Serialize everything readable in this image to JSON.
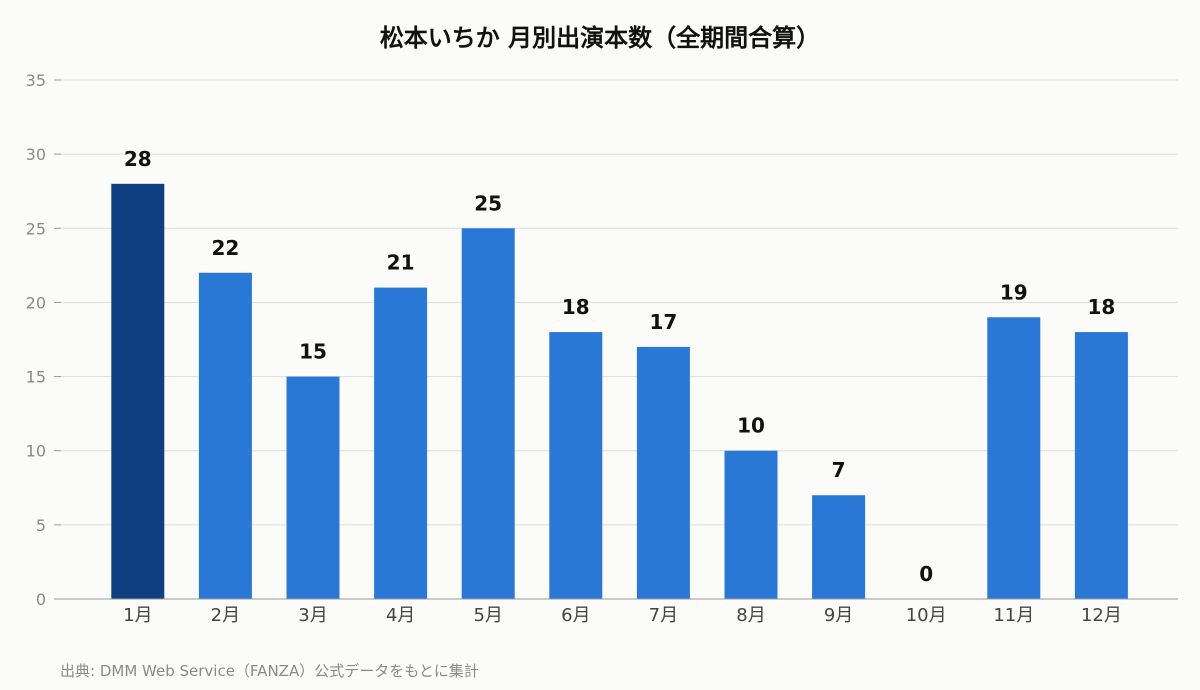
{
  "chart_data": {
    "type": "bar",
    "title": "松本いちか 月別出演本数（全期間合算）",
    "xlabel": "",
    "ylabel": "",
    "categories": [
      "1月",
      "2月",
      "3月",
      "4月",
      "5月",
      "6月",
      "7月",
      "8月",
      "9月",
      "10月",
      "11月",
      "12月"
    ],
    "values": [
      28,
      22,
      15,
      21,
      25,
      18,
      17,
      10,
      7,
      0,
      19,
      18
    ],
    "ylim": [
      0,
      35
    ],
    "yticks": [
      0,
      5,
      10,
      15,
      20,
      25,
      30,
      35
    ],
    "grid": true,
    "data_labels": true,
    "highlight_index": 0,
    "colors": {
      "bar": "#2a78d6",
      "highlight": "#0f3f80"
    }
  },
  "source_note": "出典: DMM Web Service（FANZA）公式データをもとに集計"
}
